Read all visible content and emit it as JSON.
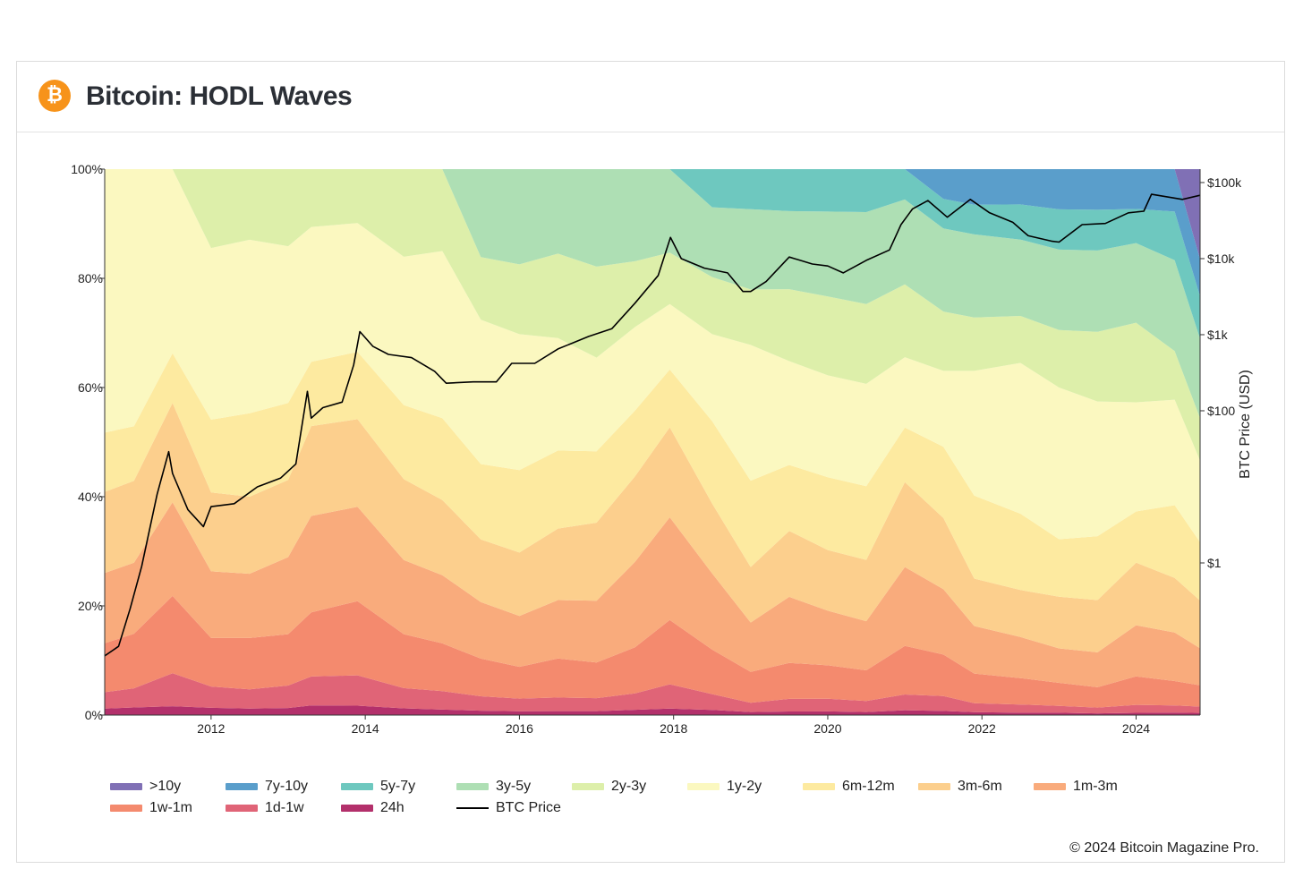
{
  "header": {
    "logo_glyph": "₿",
    "title": "Bitcoin: HODL Waves"
  },
  "copyright": "© 2024 Bitcoin Magazine Pro.",
  "chart_data": {
    "type": "area",
    "stacked": true,
    "title": "Bitcoin: HODL Waves",
    "x_ticks": [
      "2012",
      "2014",
      "2016",
      "2018",
      "2020",
      "2022",
      "2024"
    ],
    "x_range": [
      2010.62,
      2024.83
    ],
    "y_left": {
      "ticks": [
        "0%",
        "20%",
        "40%",
        "60%",
        "80%",
        "100%"
      ],
      "range": [
        0,
        100
      ]
    },
    "y_right": {
      "label": "BTC Price (USD)",
      "scale": "log",
      "ticks": [
        "$1",
        "$100",
        "$1k",
        "$10k",
        "$100k"
      ],
      "range": [
        0.01,
        150000
      ]
    },
    "x": [
      2010.6,
      2011.0,
      2011.5,
      2012.0,
      2012.5,
      2013.0,
      2013.3,
      2013.9,
      2014.5,
      2015.0,
      2015.5,
      2016.0,
      2016.5,
      2017.0,
      2017.5,
      2017.95,
      2018.5,
      2019.0,
      2019.5,
      2020.0,
      2020.5,
      2021.0,
      2021.5,
      2021.9,
      2022.5,
      2023.0,
      2023.5,
      2024.0,
      2024.5,
      2024.83
    ],
    "series": [
      {
        "name": "24h",
        "color": "#b3306b",
        "values": [
          1.2,
          1.4,
          1.6,
          1.2,
          1.0,
          1.1,
          1.5,
          1.4,
          1.0,
          0.8,
          0.7,
          0.6,
          0.6,
          0.6,
          0.8,
          1.0,
          0.8,
          0.5,
          0.6,
          0.6,
          0.5,
          0.8,
          0.7,
          0.5,
          0.4,
          0.4,
          0.3,
          0.4,
          0.4,
          0.4
        ]
      },
      {
        "name": "1d-1w",
        "color": "#e06477",
        "values": [
          3.0,
          3.5,
          6.0,
          3.5,
          3.0,
          3.5,
          4.5,
          4.5,
          3.0,
          2.7,
          2.3,
          2.0,
          2.1,
          2.0,
          2.5,
          3.8,
          2.5,
          1.5,
          2.1,
          2.1,
          1.8,
          2.6,
          2.5,
          1.5,
          1.4,
          1.2,
          1.0,
          1.4,
          1.2,
          1.2
        ]
      },
      {
        "name": "1w-1m",
        "color": "#f48a6e",
        "values": [
          9.0,
          10.0,
          14.0,
          8.0,
          8.0,
          8.0,
          10.0,
          11.0,
          8.0,
          7.0,
          6.0,
          5.0,
          6.0,
          5.5,
          7.0,
          10.0,
          7.0,
          5.0,
          6.0,
          5.5,
          5.0,
          8.0,
          7.0,
          5.0,
          4.5,
          4.0,
          3.5,
          5.0,
          4.0,
          4.0
        ]
      },
      {
        "name": "1m-3m",
        "color": "#f9ab7c",
        "values": [
          13.0,
          13.0,
          17.0,
          11.0,
          10.0,
          12.0,
          15.0,
          14.0,
          11.0,
          10.0,
          9.0,
          8.0,
          9.0,
          9.5,
          13.0,
          16.0,
          12.0,
          8.0,
          11.0,
          9.0,
          8.0,
          13.0,
          11.0,
          8.0,
          7.0,
          6.0,
          6.0,
          9.0,
          8.0,
          7.0
        ]
      },
      {
        "name": "3m-6m",
        "color": "#fccf8d",
        "values": [
          15.0,
          15.0,
          18.0,
          13.0,
          12.0,
          12.0,
          14.0,
          13.0,
          12.0,
          11.0,
          10.0,
          10.0,
          11.0,
          12.0,
          13.0,
          14.0,
          11.0,
          9.0,
          11.0,
          10.0,
          10.0,
          14.0,
          12.0,
          8.0,
          8.0,
          9.0,
          9.0,
          11.0,
          9.0,
          9.0
        ]
      },
      {
        "name": "6m-12m",
        "color": "#fdeaa0",
        "values": [
          11.0,
          10.0,
          9.0,
          12.0,
          13.0,
          12.0,
          10.0,
          10.0,
          11.0,
          12.0,
          12.0,
          13.0,
          12.0,
          11.0,
          10.0,
          9.0,
          13.0,
          14.0,
          11.0,
          12.0,
          12.0,
          9.0,
          12.0,
          14.0,
          13.0,
          10.0,
          11.0,
          9.0,
          12.0,
          11.0
        ]
      },
      {
        "name": "1y-2y",
        "color": "#fbf8c0",
        "values": [
          48.8,
          47.1,
          33.4,
          28.3,
          27.0,
          24.4,
          21.0,
          19.1,
          22.0,
          24.5,
          23.0,
          21.4,
          17.3,
          14.4,
          12.7,
          10.2,
          13.7,
          22.0,
          17.3,
          16.8,
          16.7,
          11.6,
          12.8,
          21.0,
          25.7,
          26.4,
          23.2,
          19.2,
          17.4,
          15.4
        ]
      },
      {
        "name": "2y-3y",
        "color": "#ddefaa",
        "values": [
          0.0,
          0.0,
          0.0,
          13.0,
          11.0,
          12.0,
          9.0,
          8.0,
          13.0,
          12.0,
          10.0,
          11.0,
          13.0,
          14.0,
          10.0,
          8.0,
          9.0,
          9.0,
          12.0,
          13.0,
          13.0,
          12.0,
          10.0,
          9.0,
          8.0,
          10.0,
          12.0,
          14.0,
          8.0,
          8.0
        ]
      },
      {
        "name": "3y-5y",
        "color": "#aedfb4",
        "values": [
          0.0,
          0.0,
          0.0,
          0.0,
          0.0,
          0.0,
          0.0,
          0.0,
          0.0,
          0.0,
          14.0,
          15.0,
          13.0,
          15.0,
          14.0,
          13.0,
          11.0,
          13.0,
          13.0,
          14.0,
          15.0,
          14.0,
          14.0,
          14.0,
          13.0,
          14.0,
          14.0,
          14.0,
          15.0,
          15.0
        ]
      },
      {
        "name": "5y-7y",
        "color": "#6ec8bf",
        "values": [
          0.0,
          0.0,
          0.0,
          0.0,
          0.0,
          0.0,
          0.0,
          0.0,
          0.0,
          0.0,
          0.0,
          0.0,
          0.0,
          0.0,
          0.0,
          0.0,
          6.0,
          6.5,
          7.0,
          7.0,
          7.0,
          5.0,
          5.0,
          5.0,
          6.0,
          7.0,
          7.0,
          6.0,
          8.0,
          8.0
        ]
      },
      {
        "name": "7y-10y",
        "color": "#5a9ecb",
        "values": [
          0.0,
          0.0,
          0.0,
          0.0,
          0.0,
          0.0,
          0.0,
          0.0,
          0.0,
          0.0,
          0.0,
          0.0,
          0.0,
          0.0,
          0.0,
          0.0,
          0.0,
          0.0,
          0.0,
          0.0,
          0.0,
          0.0,
          5.0,
          6.0,
          6.0,
          7.0,
          7.0,
          7.0,
          7.0,
          7.0
        ]
      },
      {
        "name": ">10y",
        "color": "#8070b5",
        "values": [
          0.0,
          0.0,
          0.0,
          0.0,
          0.0,
          0.0,
          0.0,
          0.0,
          0.0,
          0.0,
          0.0,
          0.0,
          0.0,
          0.0,
          0.0,
          0.0,
          0.0,
          0.0,
          0.0,
          0.0,
          0.0,
          0.0,
          0.0,
          0.0,
          0.0,
          0.0,
          0.0,
          0.0,
          0.0,
          17.0
        ]
      }
    ],
    "price_series": {
      "name": "BTC Price",
      "color": "#000000",
      "x": [
        2010.62,
        2010.8,
        2010.95,
        2011.1,
        2011.3,
        2011.45,
        2011.5,
        2011.7,
        2011.9,
        2012.0,
        2012.3,
        2012.6,
        2012.9,
        2013.1,
        2013.25,
        2013.3,
        2013.45,
        2013.7,
        2013.85,
        2013.93,
        2014.1,
        2014.3,
        2014.6,
        2014.9,
        2015.05,
        2015.4,
        2015.7,
        2015.9,
        2016.2,
        2016.5,
        2016.9,
        2017.2,
        2017.5,
        2017.8,
        2017.96,
        2018.1,
        2018.4,
        2018.7,
        2018.9,
        2019.0,
        2019.2,
        2019.5,
        2019.8,
        2020.0,
        2020.2,
        2020.5,
        2020.8,
        2020.95,
        2021.1,
        2021.3,
        2021.55,
        2021.85,
        2022.1,
        2022.4,
        2022.6,
        2022.9,
        2023.0,
        2023.3,
        2023.6,
        2023.9,
        2024.1,
        2024.2,
        2024.4,
        2024.6,
        2024.83
      ],
      "values": [
        0.06,
        0.08,
        0.25,
        0.9,
        8,
        29,
        15,
        5,
        3,
        5.5,
        6,
        10,
        13,
        20,
        180,
        80,
        110,
        130,
        400,
        1100,
        700,
        550,
        500,
        330,
        230,
        240,
        240,
        420,
        420,
        650,
        950,
        1200,
        2600,
        6000,
        19000,
        10000,
        7500,
        6500,
        3700,
        3700,
        5000,
        10500,
        8500,
        8000,
        6500,
        9500,
        13000,
        28000,
        45000,
        58000,
        35000,
        60000,
        40000,
        30000,
        20000,
        17000,
        16500,
        28000,
        29000,
        40000,
        42000,
        70000,
        65000,
        60000,
        68000
      ]
    }
  }
}
